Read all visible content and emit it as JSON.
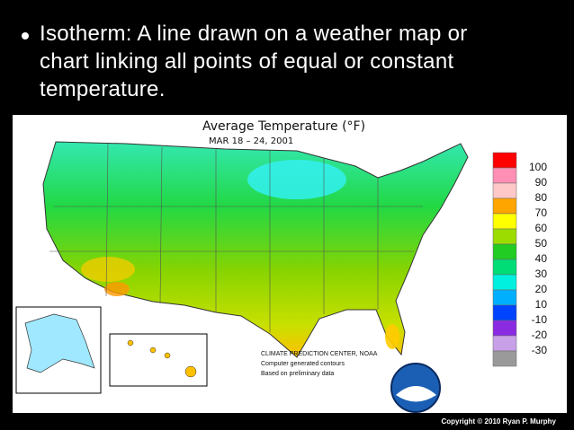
{
  "bullet": {
    "text": "Isotherm: A line drawn on a weather map or chart linking all points of equal or constant temperature."
  },
  "map": {
    "title": "Average Temperature (°F)",
    "subtitle": "MAR 18 – 24, 2001",
    "credits": [
      "CLIMATE PREDICTION CENTER, NOAA",
      "Computer generated contours",
      "Based on preliminary data"
    ],
    "legend": {
      "labels": [
        "100",
        "90",
        "80",
        "70",
        "60",
        "50",
        "40",
        "30",
        "20",
        "10",
        "-10",
        "-20",
        "-30"
      ],
      "colors": [
        "#ff0000",
        "#ff8fb4",
        "#ffc8c8",
        "#ffa500",
        "#ffff00",
        "#9cdc00",
        "#22cc22",
        "#00dd77",
        "#00f0e0",
        "#00b0ff",
        "#0044ff",
        "#8a2be2",
        "#c8a0e8",
        "#9a9a9a"
      ]
    }
  },
  "footer": {
    "copyright": "Copyright © 2010 Ryan P. Murphy"
  }
}
